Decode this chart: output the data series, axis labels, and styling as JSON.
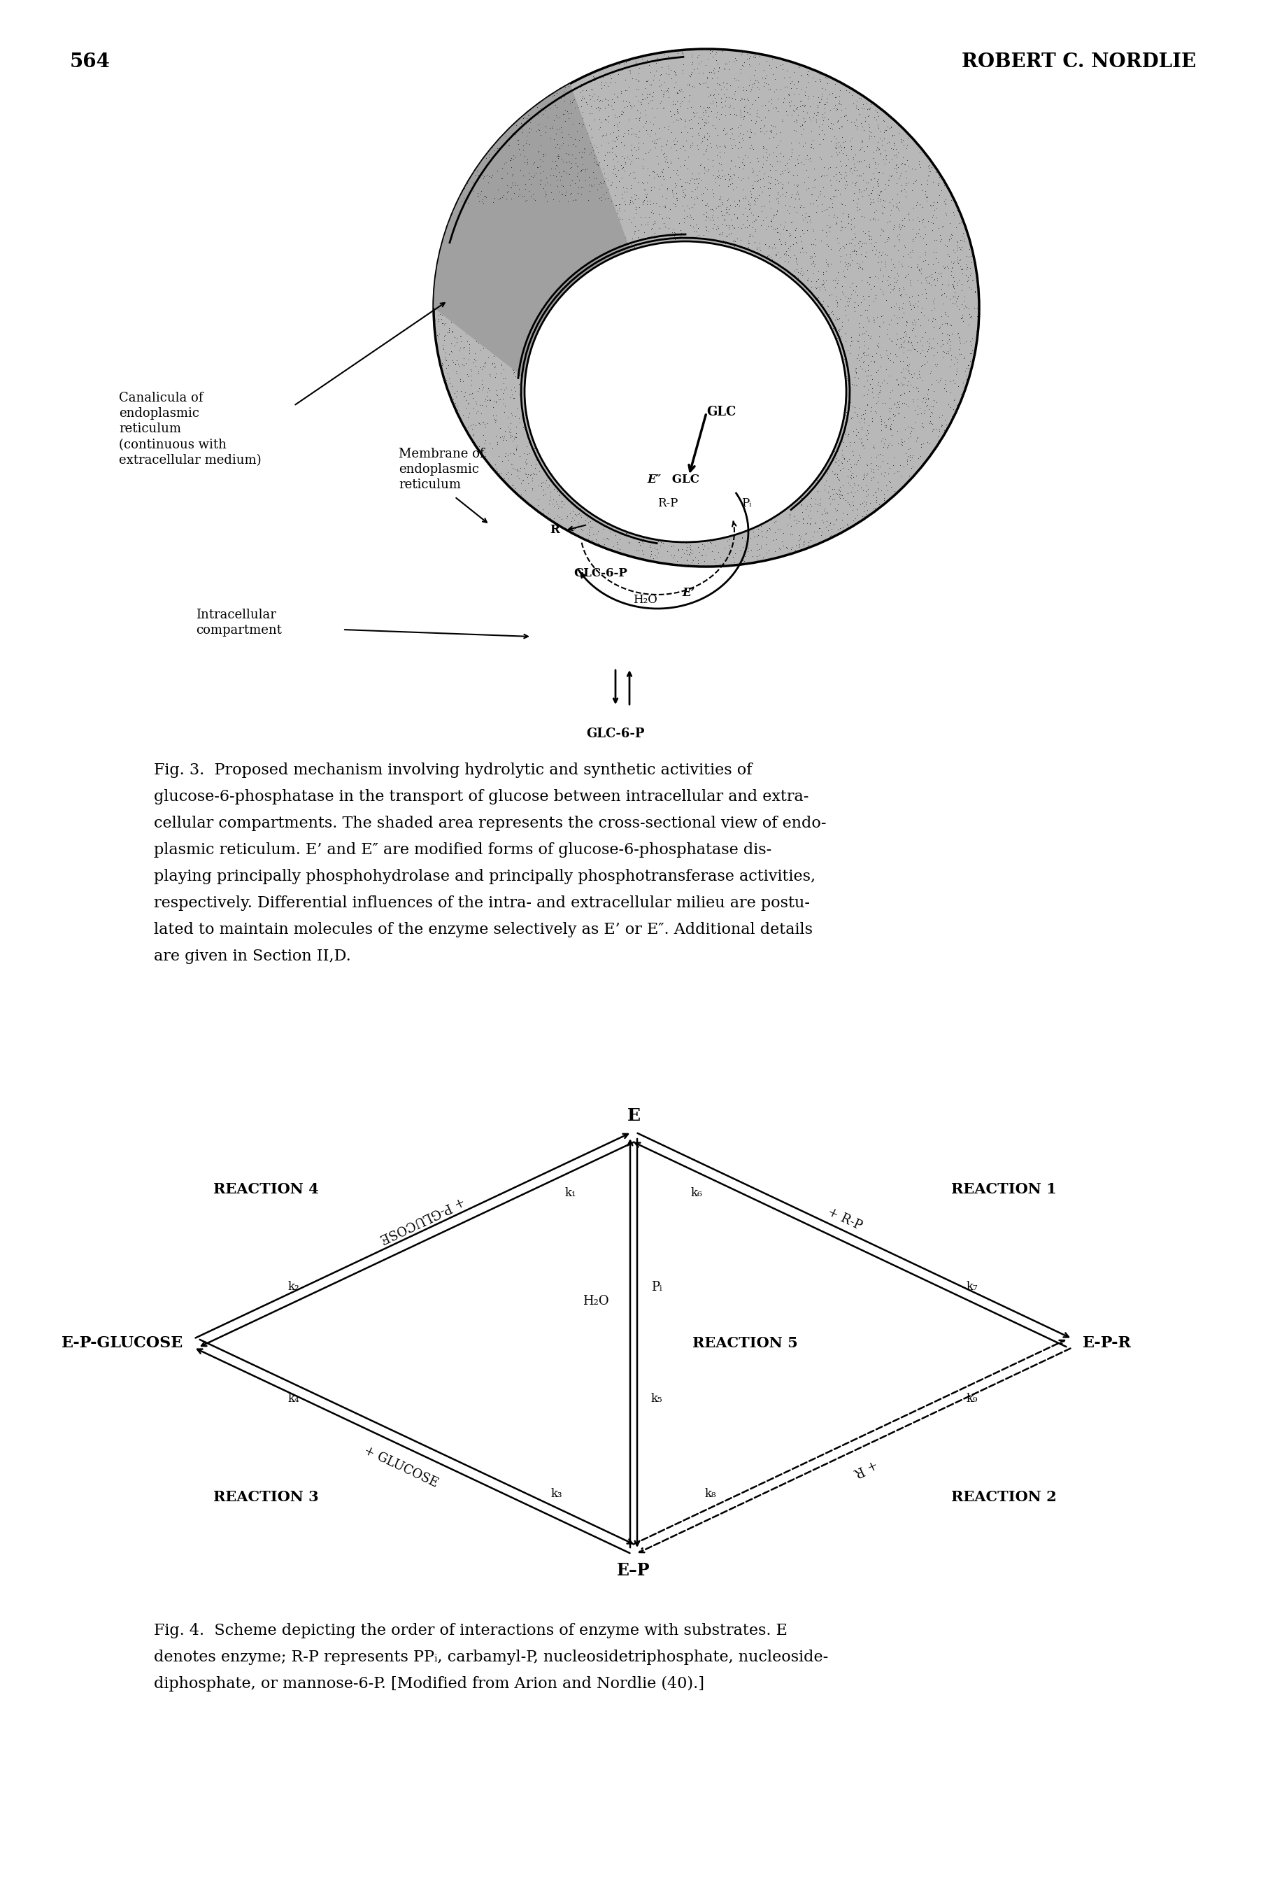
{
  "page_number": "564",
  "header_right": "ROBERT C. NORDLIE",
  "background_color": "#ffffff",
  "text_color": "#000000",
  "fig3_lines": [
    "Fig. 3.  Proposed mechanism involving hydrolytic and synthetic activities of",
    "glucose-6-phosphatase in the transport of glucose between intracellular and extra-",
    "cellular compartments. The shaded area represents the cross-sectional view of endo-",
    "plasmic reticulum. E’ and E″ are modified forms of glucose-6-phosphatase dis-",
    "playing principally phosphohydrolase and principally phosphotransferase activities,",
    "respectively. Differential influences of the intra- and extracellular milieu are postu-",
    "lated to maintain molecules of the enzyme selectively as E’ or E″. Additional details",
    "are given in Section II,D."
  ],
  "fig4_lines": [
    "Fig. 4.  Scheme depicting the order of interactions of enzyme with substrates. E",
    "denotes enzyme; R-P represents PPᵢ, carbamyl-P, nucleosidetriphosphate, nucleoside-",
    "diphosphate, or mannose-6-P. [Modified from Arion and Nordlie (40).]"
  ]
}
